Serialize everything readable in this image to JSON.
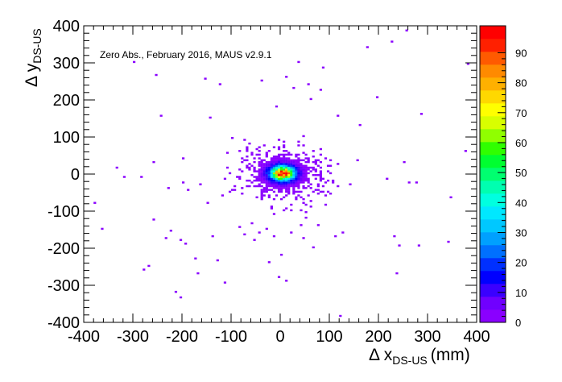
{
  "chart_data": {
    "type": "heatmap",
    "annotation": "Zero Abs., February 2016, MAUS v2.9.1",
    "xlabel": {
      "main": "Δ x",
      "sub": "DS-US",
      "unit": "(mm)"
    },
    "ylabel": {
      "main": "Δ y",
      "sub": "DS-US"
    },
    "xlim": [
      -400,
      400
    ],
    "ylim": [
      -400,
      400
    ],
    "xticks": [
      -400,
      -300,
      -200,
      -100,
      0,
      100,
      200,
      300,
      400
    ],
    "yticks": [
      -400,
      -300,
      -200,
      -100,
      0,
      100,
      200,
      300,
      400
    ],
    "zlim": [
      0,
      99
    ],
    "zticks": [
      0,
      10,
      20,
      30,
      40,
      50,
      60,
      70,
      80,
      90
    ],
    "bin_width": 5,
    "colorscale": [
      "#8a00ff",
      "#7000ff",
      "#3a00ff",
      "#0000ff",
      "#0030ff",
      "#0070ff",
      "#00a0ff",
      "#00c8ff",
      "#00e8ff",
      "#00ffe0",
      "#00ffb0",
      "#00ff70",
      "#00ff30",
      "#30ff00",
      "#90ff00",
      "#d8ff00",
      "#ffff00",
      "#ffd800",
      "#ffb000",
      "#ff8a00",
      "#ff5a00",
      "#ff2000",
      "#ff0000"
    ],
    "core": {
      "center": [
        5,
        2
      ],
      "sigma": [
        16,
        13
      ],
      "peak": 95
    },
    "points": [
      [
        -380,
        -80
      ],
      [
        -365,
        -150
      ],
      [
        -335,
        15
      ],
      [
        -320,
        -10
      ],
      [
        -300,
        300
      ],
      [
        -285,
        -10
      ],
      [
        -280,
        -260
      ],
      [
        -270,
        -250
      ],
      [
        -260,
        -125
      ],
      [
        -260,
        30
      ],
      [
        -255,
        265
      ],
      [
        -245,
        155
      ],
      [
        -235,
        -175
      ],
      [
        -225,
        -155
      ],
      [
        -215,
        -320
      ],
      [
        -205,
        -335
      ],
      [
        -205,
        -180
      ],
      [
        -200,
        -25
      ],
      [
        -195,
        -190
      ],
      [
        -190,
        -45
      ],
      [
        -175,
        -230
      ],
      [
        -170,
        -270
      ],
      [
        -165,
        -30
      ],
      [
        -155,
        255
      ],
      [
        -150,
        -80
      ],
      [
        -145,
        150
      ],
      [
        -140,
        -170
      ],
      [
        -130,
        -235
      ],
      [
        -125,
        240
      ],
      [
        -120,
        -60
      ],
      [
        -115,
        -295
      ],
      [
        -105,
        -50
      ],
      [
        -100,
        95
      ],
      [
        -95,
        -35
      ],
      [
        -85,
        -145
      ],
      [
        -75,
        -165
      ],
      [
        -70,
        45
      ],
      [
        -60,
        -135
      ],
      [
        -55,
        -180
      ],
      [
        -45,
        -160
      ],
      [
        -40,
        250
      ],
      [
        -30,
        -150
      ],
      [
        -25,
        -240
      ],
      [
        -15,
        -170
      ],
      [
        -10,
        180
      ],
      [
        -5,
        -280
      ],
      [
        0,
        -220
      ],
      [
        5,
        -100
      ],
      [
        10,
        -290
      ],
      [
        10,
        260
      ],
      [
        20,
        -160
      ],
      [
        25,
        230
      ],
      [
        35,
        300
      ],
      [
        40,
        -140
      ],
      [
        45,
        -175
      ],
      [
        50,
        -120
      ],
      [
        55,
        240
      ],
      [
        60,
        200
      ],
      [
        65,
        -200
      ],
      [
        75,
        -140
      ],
      [
        80,
        225
      ],
      [
        85,
        285
      ],
      [
        90,
        -85
      ],
      [
        100,
        -55
      ],
      [
        110,
        -170
      ],
      [
        115,
        155
      ],
      [
        120,
        -385
      ],
      [
        125,
        -160
      ],
      [
        140,
        -30
      ],
      [
        155,
        35
      ],
      [
        160,
        130
      ],
      [
        175,
        340
      ],
      [
        195,
        205
      ],
      [
        215,
        -15
      ],
      [
        225,
        355
      ],
      [
        230,
        -170
      ],
      [
        235,
        -270
      ],
      [
        240,
        -195
      ],
      [
        250,
        30
      ],
      [
        255,
        385
      ],
      [
        260,
        -25
      ],
      [
        275,
        -25
      ],
      [
        280,
        -195
      ],
      [
        285,
        160
      ],
      [
        340,
        -185
      ],
      [
        345,
        -65
      ],
      [
        375,
        60
      ],
      [
        380,
        295
      ],
      [
        -200,
        40
      ],
      [
        -230,
        -40
      ]
    ]
  }
}
